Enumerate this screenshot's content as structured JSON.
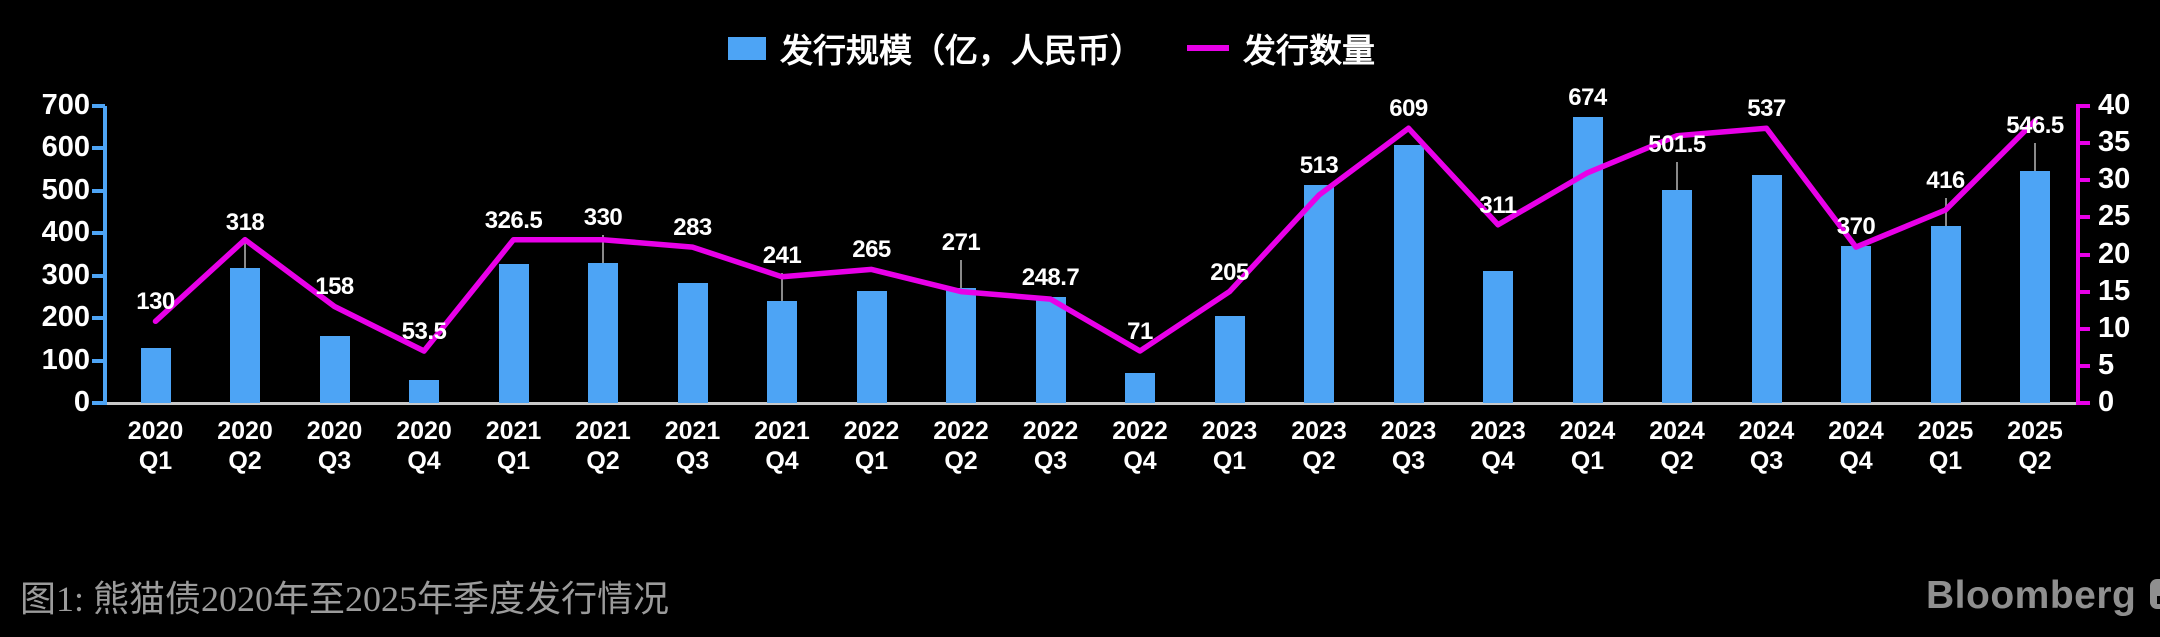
{
  "legend": {
    "bar_label": "发行规模（亿，人民币）",
    "line_label": "发行数量"
  },
  "caption": "图1: 熊猫债2020年至2025年季度发行情况",
  "branding": {
    "logo_text": "Bloomberg"
  },
  "colors": {
    "background": "#000000",
    "bar": "#4da4f5",
    "line": "#e800e8",
    "axis_baseline": "#c9c9c9",
    "connector": "#8a8a8a",
    "caption": "#9b9b9b",
    "logo": "#8f8f8f",
    "text": "#ffffff"
  },
  "chart_data": {
    "type": "bar",
    "subtype": "bar-line-combo",
    "title": "",
    "categories": [
      "2020 Q1",
      "2020 Q2",
      "2020 Q3",
      "2020 Q4",
      "2021 Q1",
      "2021 Q2",
      "2021 Q3",
      "2021 Q4",
      "2022 Q1",
      "2022 Q2",
      "2022 Q3",
      "2022 Q4",
      "2023 Q1",
      "2023 Q2",
      "2023 Q3",
      "2023 Q4",
      "2024 Q1",
      "2024 Q2",
      "2024 Q3",
      "2024 Q4",
      "2025 Q1",
      "2025 Q2"
    ],
    "series": [
      {
        "name": "发行规模（亿，人民币）",
        "type": "bar",
        "axis": "left",
        "values": [
          130,
          318,
          158,
          53.5,
          326.5,
          330,
          283,
          241,
          265,
          271,
          248.7,
          71,
          205,
          513,
          609,
          311,
          674,
          501.5,
          537,
          370,
          416,
          546.5
        ],
        "data_labels_shown": true,
        "raised_label_indices": [
          1,
          5,
          7,
          9,
          17,
          20,
          21
        ]
      },
      {
        "name": "发行数量",
        "type": "line",
        "axis": "right",
        "values": [
          11,
          22,
          13,
          7,
          22,
          22,
          21,
          17,
          18,
          15,
          14,
          7,
          15,
          28,
          37,
          24,
          31,
          36,
          37,
          21,
          26,
          38
        ],
        "data_labels_shown": false
      }
    ],
    "left_axis": {
      "min": 0,
      "max": 700,
      "step": 100,
      "ticks": [
        0,
        100,
        200,
        300,
        400,
        500,
        600,
        700
      ]
    },
    "right_axis": {
      "min": 0,
      "max": 40,
      "step": 5,
      "ticks": [
        0,
        5,
        10,
        15,
        20,
        25,
        30,
        35,
        40
      ]
    },
    "grid": false,
    "legend_position": "top-center",
    "xlabel": "",
    "ylabel_left": "发行规模（亿，人民币）",
    "ylabel_right": "发行数量"
  }
}
